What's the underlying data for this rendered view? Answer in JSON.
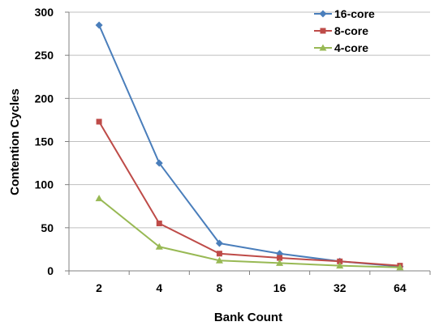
{
  "chart_data": {
    "type": "line",
    "title": "",
    "xlabel": "Bank Count",
    "ylabel": "Contention Cycles",
    "categories": [
      "2",
      "4",
      "8",
      "16",
      "32",
      "64"
    ],
    "ylim": [
      0,
      300
    ],
    "yticks": [
      0,
      50,
      100,
      150,
      200,
      250,
      300
    ],
    "grid": true,
    "legend": "top-right",
    "series": [
      {
        "name": "16-core",
        "color": "#4a7ebb",
        "marker": "diamond",
        "values": [
          285,
          125,
          32,
          20,
          11,
          5
        ]
      },
      {
        "name": "8-core",
        "color": "#be4b48",
        "marker": "square",
        "values": [
          173,
          55,
          20,
          15,
          11,
          6
        ]
      },
      {
        "name": "4-core",
        "color": "#98b954",
        "marker": "triangle",
        "values": [
          84,
          28,
          12,
          9,
          6,
          4
        ]
      }
    ]
  }
}
